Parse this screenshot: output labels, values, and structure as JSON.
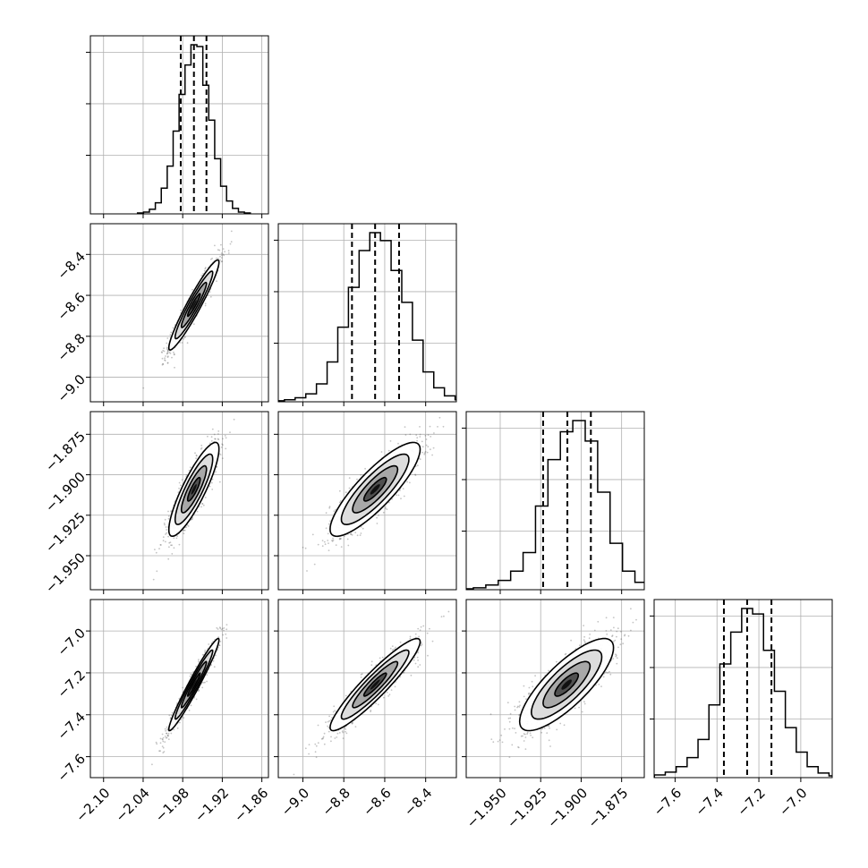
{
  "chart_data": {
    "type": "corner",
    "title": "",
    "grid": true,
    "colors": {
      "hist": "#000000",
      "scatter": "#555555",
      "quantile": "#000000",
      "grid": "#b0b0b0"
    },
    "parameters": [
      {
        "range": [
          -2.12,
          -1.85
        ],
        "ticks": [
          -2.1,
          -2.04,
          -1.98,
          -1.92,
          -1.86
        ],
        "tick_labels": [
          "−2.10",
          "−2.04",
          "−1.98",
          "−1.92",
          "−1.86"
        ],
        "mean": -1.963,
        "std": 0.019,
        "quantiles": [
          -1.983,
          -1.963,
          -1.944
        ],
        "hist_counts": [
          1,
          2,
          5,
          12,
          28,
          52,
          90,
          130,
          162,
          184,
          182,
          140,
          102,
          60,
          30,
          14,
          6,
          2,
          1
        ]
      },
      {
        "range": [
          -9.12,
          -8.25
        ],
        "ticks": [
          -9.0,
          -8.8,
          -8.6,
          -8.4
        ],
        "tick_labels": [
          "−9.0",
          "−8.8",
          "−8.6",
          "−8.4"
        ],
        "mean": -8.647,
        "std": 0.11,
        "quantiles": [
          -8.76,
          -8.647,
          -8.53
        ],
        "hist_counts": [
          1,
          2,
          4,
          8,
          18,
          40,
          75,
          115,
          152,
          170,
          162,
          132,
          100,
          62,
          30,
          14,
          6,
          2,
          1
        ]
      },
      {
        "range": [
          -1.971,
          -1.861
        ],
        "ticks": [
          -1.95,
          -1.925,
          -1.9,
          -1.875
        ],
        "tick_labels": [
          "−1.950",
          "−1.925",
          "−1.900",
          "−1.875"
        ],
        "mean": -1.909,
        "std": 0.0145,
        "quantiles": [
          -1.9235,
          -1.9085,
          -1.894
        ],
        "hist_counts": [
          1,
          2,
          5,
          10,
          20,
          40,
          90,
          140,
          170,
          182,
          160,
          105,
          50,
          20,
          8,
          3,
          1
        ]
      },
      {
        "range": [
          -7.7,
          -6.85
        ],
        "ticks": [
          -7.6,
          -7.4,
          -7.2,
          -7.0
        ],
        "tick_labels": [
          "−7.6",
          "−7.4",
          "−7.2",
          "−7.0"
        ],
        "mean": -7.256,
        "std": 0.11,
        "quantiles": [
          -7.367,
          -7.256,
          -7.14
        ],
        "hist_counts": [
          1,
          3,
          6,
          12,
          22,
          42,
          80,
          125,
          160,
          186,
          180,
          140,
          95,
          55,
          28,
          12,
          5,
          2,
          1
        ]
      }
    ],
    "correlations": [
      [
        1.0,
        0.95,
        0.86,
        0.97
      ],
      [
        0.95,
        1.0,
        0.85,
        0.93
      ],
      [
        0.86,
        0.85,
        1.0,
        0.8
      ],
      [
        0.97,
        0.93,
        0.8,
        1.0
      ]
    ]
  }
}
